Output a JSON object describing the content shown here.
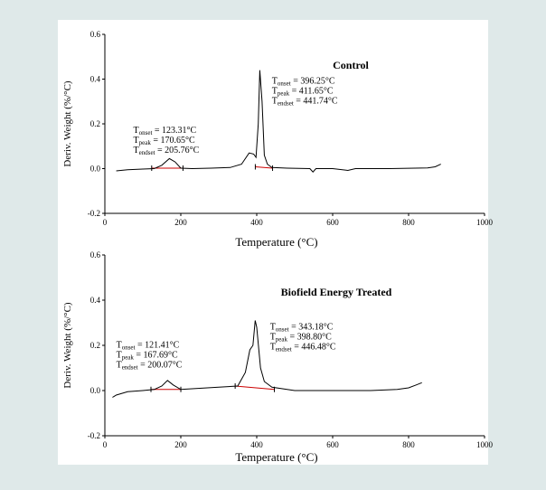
{
  "chart_data": [
    {
      "type": "line",
      "title": "Control",
      "xlabel": "Temperature (°C)",
      "ylabel": "Deriv. Weight (%/°C)",
      "xlim": [
        0,
        1000
      ],
      "ylim": [
        -0.2,
        0.6
      ],
      "x_ticks": [
        "0",
        "200",
        "400",
        "600",
        "800",
        "1000"
      ],
      "y_ticks": [
        "-0.2",
        "0.0",
        "0.2",
        "0.4",
        "0.6"
      ],
      "grid": false,
      "series": [
        {
          "color": "#000000",
          "points": [
            [
              30,
              -0.01
            ],
            [
              60,
              -0.005
            ],
            [
              100,
              -0.002
            ],
            [
              130,
              0.0
            ],
            [
              150,
              0.015
            ],
            [
              170,
              0.045
            ],
            [
              185,
              0.03
            ],
            [
              200,
              0.002
            ],
            [
              230,
              0.0
            ],
            [
              280,
              0.002
            ],
            [
              330,
              0.005
            ],
            [
              360,
              0.02
            ],
            [
              380,
              0.07
            ],
            [
              392,
              0.065
            ],
            [
              398,
              0.05
            ],
            [
              404,
              0.2
            ],
            [
              408,
              0.44
            ],
            [
              414,
              0.3
            ],
            [
              420,
              0.06
            ],
            [
              428,
              0.02
            ],
            [
              440,
              0.005
            ],
            [
              480,
              0.002
            ],
            [
              540,
              0.0
            ],
            [
              548,
              -0.015
            ],
            [
              556,
              0.0
            ],
            [
              600,
              0.0
            ],
            [
              640,
              -0.008
            ],
            [
              660,
              0.0
            ],
            [
              750,
              0.0
            ],
            [
              850,
              0.003
            ],
            [
              870,
              0.008
            ],
            [
              885,
              0.02
            ]
          ]
        }
      ],
      "baselines": [
        {
          "color": "#cc0000",
          "points": [
            [
              123.31,
              0.002
            ],
            [
              205.76,
              0.002
            ]
          ]
        },
        {
          "color": "#cc0000",
          "points": [
            [
              396.25,
              0.008
            ],
            [
              441.74,
              0.002
            ]
          ]
        }
      ],
      "peak_labels": [
        {
          "lines": [
            [
              "T",
              "onset",
              " = 123.31°C"
            ],
            [
              "T",
              "peak",
              " = 170.65°C"
            ],
            [
              "T",
              "endset",
              " = 205.76°C"
            ]
          ],
          "anchor_x": 75,
          "anchor_y": 0.16
        },
        {
          "lines": [
            [
              "T",
              "onset",
              " = 396.25°C"
            ],
            [
              "T",
              "peak",
              " = 411.65°C"
            ],
            [
              "T",
              "endset",
              " = 441.74°C"
            ]
          ],
          "anchor_x": 440,
          "anchor_y": 0.38
        }
      ]
    },
    {
      "type": "line",
      "title": "Biofield Energy Treated",
      "xlabel": "Temperature (°C)",
      "ylabel": "Deriv. Weight (%/°C)",
      "xlim": [
        0,
        1000
      ],
      "ylim": [
        -0.2,
        0.6
      ],
      "x_ticks": [
        "0",
        "200",
        "400",
        "600",
        "800",
        "1000"
      ],
      "y_ticks": [
        "-0.2",
        "0.0",
        "0.2",
        "0.4",
        "0.6"
      ],
      "grid": false,
      "series": [
        {
          "color": "#000000",
          "points": [
            [
              20,
              -0.03
            ],
            [
              30,
              -0.02
            ],
            [
              60,
              -0.005
            ],
            [
              100,
              0.0
            ],
            [
              130,
              0.005
            ],
            [
              150,
              0.02
            ],
            [
              165,
              0.045
            ],
            [
              180,
              0.025
            ],
            [
              200,
              0.005
            ],
            [
              300,
              0.015
            ],
            [
              350,
              0.02
            ],
            [
              370,
              0.08
            ],
            [
              382,
              0.18
            ],
            [
              390,
              0.2
            ],
            [
              396,
              0.31
            ],
            [
              400,
              0.28
            ],
            [
              410,
              0.1
            ],
            [
              420,
              0.04
            ],
            [
              440,
              0.015
            ],
            [
              500,
              0.0
            ],
            [
              600,
              0.0
            ],
            [
              700,
              0.0
            ],
            [
              770,
              0.005
            ],
            [
              800,
              0.012
            ],
            [
              820,
              0.025
            ],
            [
              835,
              0.035
            ]
          ]
        }
      ],
      "baselines": [
        {
          "color": "#cc0000",
          "points": [
            [
              121.41,
              0.005
            ],
            [
              200.07,
              0.005
            ]
          ]
        },
        {
          "color": "#cc0000",
          "points": [
            [
              343.18,
              0.02
            ],
            [
              446.48,
              0.005
            ]
          ]
        }
      ],
      "peak_labels": [
        {
          "lines": [
            [
              "T",
              "onset",
              " = 121.41°C"
            ],
            [
              "T",
              "peak",
              " = 167.69°C"
            ],
            [
              "T",
              "endset",
              " = 200.07°C"
            ]
          ],
          "anchor_x": 30,
          "anchor_y": 0.19
        },
        {
          "lines": [
            [
              "T",
              "onset",
              " = 343.18°C"
            ],
            [
              "T",
              "peak",
              " = 398.80°C"
            ],
            [
              "T",
              "endset",
              " = 446.48°C"
            ]
          ],
          "anchor_x": 435,
          "anchor_y": 0.27
        }
      ]
    }
  ]
}
